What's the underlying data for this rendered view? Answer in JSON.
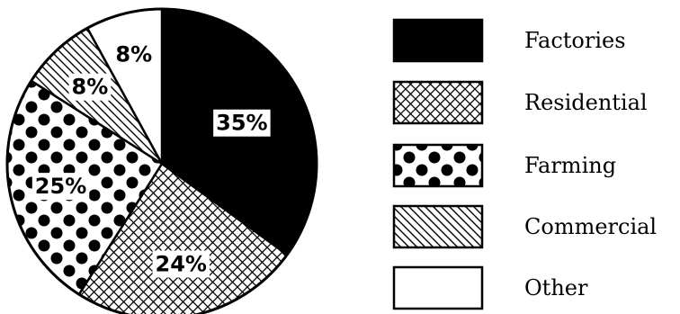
{
  "chart_data": {
    "type": "pie",
    "categories": [
      "Factories",
      "Residential",
      "Farming",
      "Commercial",
      "Other"
    ],
    "values": [
      35,
      24,
      25,
      8,
      8
    ],
    "value_labels": [
      "35%",
      "24%",
      "25%",
      "8%",
      "8%"
    ],
    "title": "",
    "start": "12 o'clock",
    "direction": "clockwise",
    "legend_position": "right",
    "patterns": [
      "solid-black",
      "crosshatch",
      "large-dots",
      "diagonal-lines",
      "white"
    ],
    "colors": {
      "ink": "#000000",
      "paper": "#ffffff"
    }
  }
}
